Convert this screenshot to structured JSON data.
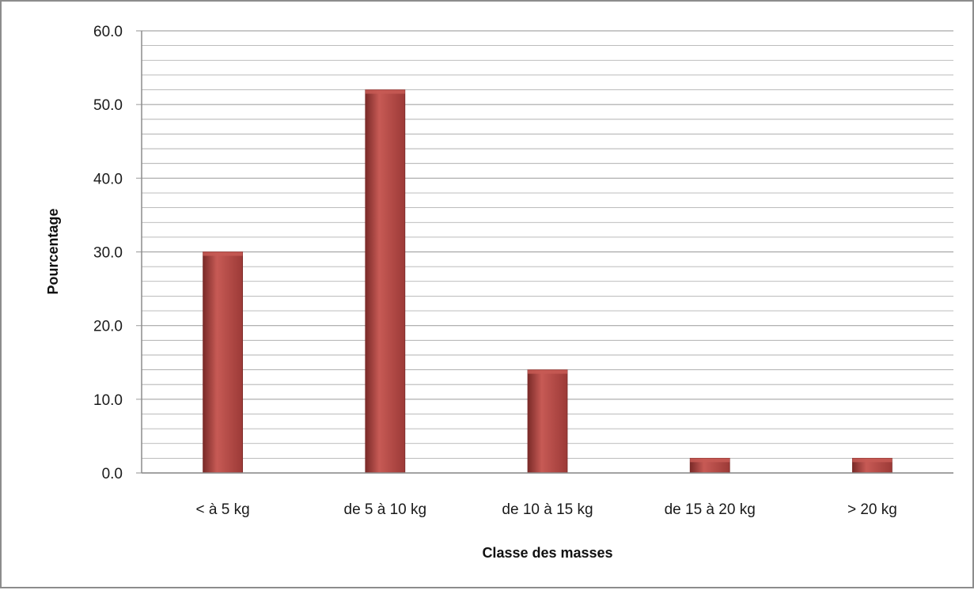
{
  "chart_data": {
    "type": "bar",
    "title": "",
    "xlabel": "Classe des masses",
    "ylabel": "Pourcentage",
    "categories": [
      "< à 5 kg",
      "de 5 à 10 kg",
      "de 10 à 15 kg",
      "de 15 à 20 kg",
      "> 20 kg"
    ],
    "values": [
      30.0,
      52.0,
      14.0,
      2.0,
      2.0
    ],
    "ylim": [
      0,
      60
    ],
    "yticks": [
      "0.0",
      "10.0",
      "20.0",
      "30.0",
      "40.0",
      "50.0",
      "60.0"
    ],
    "major_step": 10,
    "minor_step": 2,
    "grid": true,
    "legend": "none",
    "colors": {
      "bar": "#9c3a37",
      "bar_light": "#c75a55",
      "bar_dark": "#7a2a28",
      "grid": "#a6a6a6",
      "axis": "#8c8c8c"
    }
  }
}
